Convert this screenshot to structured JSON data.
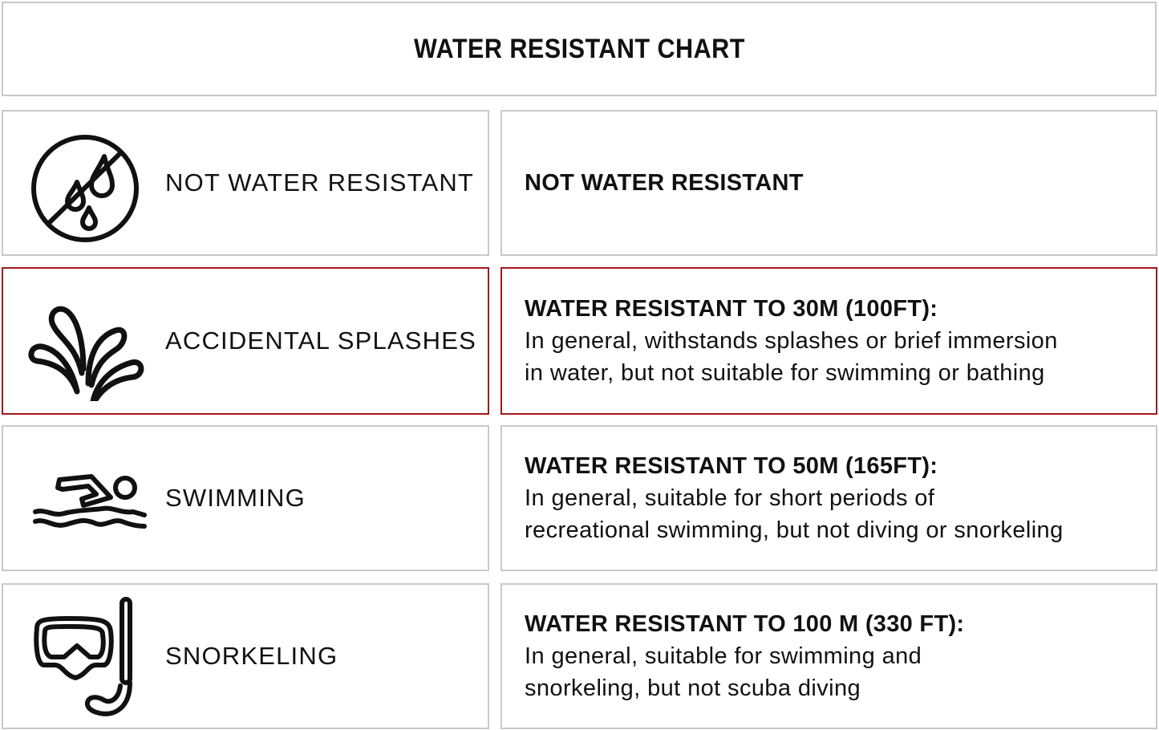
{
  "title": "WATER RESISTANT CHART",
  "colors": {
    "highlight_border": "#a3191c",
    "border": "#c9c9c9"
  },
  "rows": [
    {
      "icon": "no-water-drops-icon",
      "label": "NOT WATER RESISTANT",
      "heading": "NOT WATER RESISTANT",
      "lines": [],
      "highlighted": false
    },
    {
      "icon": "splash-icon",
      "label": "ACCIDENTAL SPLASHES",
      "heading": "WATER RESISTANT TO 30M (100FT):",
      "lines": [
        "In general, withstands splashes or brief immersion",
        "in water, but not suitable for swimming or bathing"
      ],
      "highlighted": true
    },
    {
      "icon": "swimmer-icon",
      "label": "SWIMMING",
      "heading": "WATER RESISTANT TO 50M (165FT):",
      "lines": [
        "In general, suitable for short periods of",
        "recreational swimming, but not diving or snorkeling"
      ],
      "highlighted": false
    },
    {
      "icon": "snorkel-mask-icon",
      "label": "SNORKELING",
      "heading": "WATER RESISTANT TO 100 M (330 FT):",
      "lines": [
        "In general, suitable for swimming and",
        "snorkeling, but not scuba diving"
      ],
      "highlighted": false
    }
  ]
}
